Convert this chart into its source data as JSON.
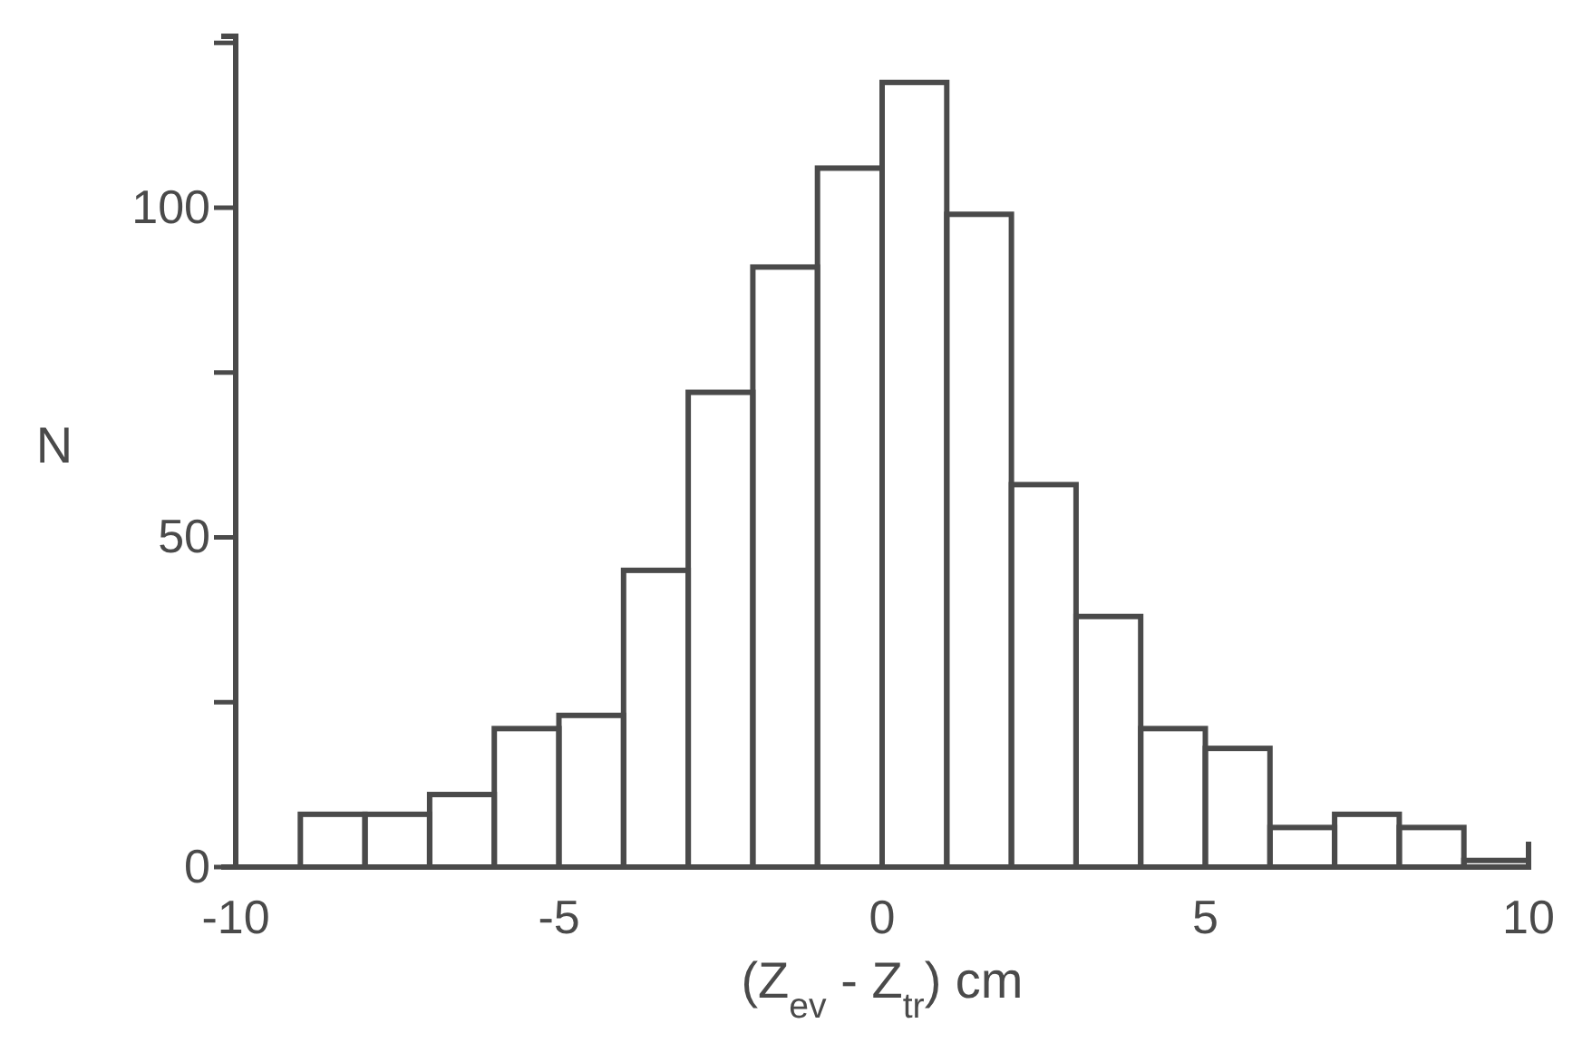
{
  "chart_data": {
    "type": "histogram",
    "xlabel": "(Z$_{ev}$ - Z$_{tr}$) cm",
    "ylabel": "N",
    "bins": [
      -9,
      -8,
      -7,
      -6,
      -5,
      -4,
      -3,
      -2,
      -1,
      0,
      1,
      2,
      3,
      4,
      5,
      6,
      7,
      8,
      9,
      10
    ],
    "values": [
      8,
      8,
      11,
      21,
      23,
      45,
      72,
      91,
      106,
      119,
      99,
      58,
      38,
      21,
      18,
      6,
      8,
      6,
      1
    ],
    "color": "#4a4a4a",
    "xlim": [
      -10,
      10
    ],
    "xticks": [
      -10,
      -5,
      0,
      5,
      10
    ],
    "ylim": [
      0,
      126
    ],
    "yticks": [
      0,
      {
        "value": 25,
        "label": null
      },
      50,
      {
        "value": 75,
        "label": null
      },
      100,
      {
        "value": 125,
        "label": null
      }
    ],
    "grid": false
  }
}
